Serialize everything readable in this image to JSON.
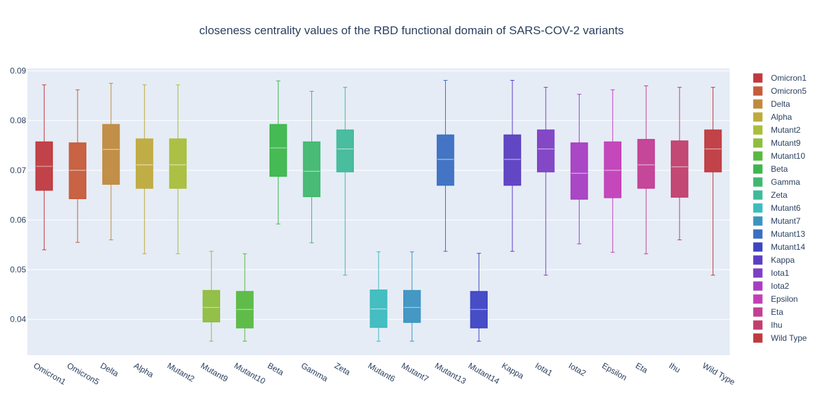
{
  "chart_data": {
    "type": "box",
    "title": "closeness centrality values of the RBD functional domain of SARS-COV-2 variants",
    "xlabel": "",
    "ylabel": "",
    "ylim": [
      0.0328,
      0.0905
    ],
    "y_ticks": [
      0.04,
      0.05,
      0.06,
      0.07,
      0.08,
      0.09
    ],
    "y_tick_labels": [
      "0.04",
      "0.05",
      "0.06",
      "0.07",
      "0.08",
      "0.09"
    ],
    "grid": true,
    "legend_position": "right",
    "series": [
      {
        "name": "Omicron1",
        "color": "#C0393F",
        "min": 0.054,
        "q1": 0.066,
        "median": 0.0708,
        "q3": 0.0757,
        "max": 0.0872
      },
      {
        "name": "Omicron5",
        "color": "#C65C3A",
        "min": 0.0555,
        "q1": 0.0643,
        "median": 0.07,
        "q3": 0.0755,
        "max": 0.0862
      },
      {
        "name": "Delta",
        "color": "#C08A3E",
        "min": 0.056,
        "q1": 0.0672,
        "median": 0.0742,
        "q3": 0.0792,
        "max": 0.0875
      },
      {
        "name": "Alpha",
        "color": "#BFAA3C",
        "min": 0.0532,
        "q1": 0.0664,
        "median": 0.0711,
        "q3": 0.0763,
        "max": 0.0872
      },
      {
        "name": "Mutant2",
        "color": "#A9BE3B",
        "min": 0.0532,
        "q1": 0.0664,
        "median": 0.0711,
        "q3": 0.0763,
        "max": 0.0872
      },
      {
        "name": "Mutant9",
        "color": "#8EBE3E",
        "min": 0.0356,
        "q1": 0.0395,
        "median": 0.0424,
        "q3": 0.0458,
        "max": 0.0537
      },
      {
        "name": "Mutant10",
        "color": "#59B940",
        "min": 0.0356,
        "q1": 0.0383,
        "median": 0.042,
        "q3": 0.0456,
        "max": 0.0532
      },
      {
        "name": "Beta",
        "color": "#3DB74C",
        "min": 0.0592,
        "q1": 0.0688,
        "median": 0.0745,
        "q3": 0.0792,
        "max": 0.088
      },
      {
        "name": "Gamma",
        "color": "#40B870",
        "min": 0.0554,
        "q1": 0.0647,
        "median": 0.0698,
        "q3": 0.0757,
        "max": 0.0859
      },
      {
        "name": "Zeta",
        "color": "#40BA98",
        "min": 0.0489,
        "q1": 0.0697,
        "median": 0.0743,
        "q3": 0.0781,
        "max": 0.0867
      },
      {
        "name": "Mutant6",
        "color": "#3CBCBE",
        "min": 0.0356,
        "q1": 0.0384,
        "median": 0.0421,
        "q3": 0.0459,
        "max": 0.0536
      },
      {
        "name": "Mutant7",
        "color": "#3B94C0",
        "min": 0.0356,
        "q1": 0.0394,
        "median": 0.0424,
        "q3": 0.0458,
        "max": 0.0536
      },
      {
        "name": "Mutant13",
        "color": "#3B6FC1",
        "min": 0.0537,
        "q1": 0.067,
        "median": 0.0722,
        "q3": 0.0771,
        "max": 0.0881
      },
      {
        "name": "Mutant14",
        "color": "#3E45C3",
        "min": 0.0356,
        "q1": 0.0383,
        "median": 0.042,
        "q3": 0.0456,
        "max": 0.0533
      },
      {
        "name": "Kappa",
        "color": "#5B3EC2",
        "min": 0.0537,
        "q1": 0.067,
        "median": 0.0722,
        "q3": 0.0771,
        "max": 0.0881
      },
      {
        "name": "Iota1",
        "color": "#7E3FC4",
        "min": 0.0489,
        "q1": 0.0697,
        "median": 0.0743,
        "q3": 0.0781,
        "max": 0.0867
      },
      {
        "name": "Iota2",
        "color": "#A73EC2",
        "min": 0.0552,
        "q1": 0.0642,
        "median": 0.0694,
        "q3": 0.0755,
        "max": 0.0853
      },
      {
        "name": "Epsilon",
        "color": "#C23FB7",
        "min": 0.0535,
        "q1": 0.0645,
        "median": 0.07,
        "q3": 0.0757,
        "max": 0.0862
      },
      {
        "name": "Eta",
        "color": "#C33E94",
        "min": 0.0532,
        "q1": 0.0664,
        "median": 0.0711,
        "q3": 0.0762,
        "max": 0.087
      },
      {
        "name": "Ihu",
        "color": "#C13F6D",
        "min": 0.056,
        "q1": 0.0646,
        "median": 0.0707,
        "q3": 0.0759,
        "max": 0.0867
      },
      {
        "name": "Wild Type",
        "color": "#C0393F",
        "min": 0.0489,
        "q1": 0.0697,
        "median": 0.0743,
        "q3": 0.0781,
        "max": 0.0867
      }
    ]
  }
}
